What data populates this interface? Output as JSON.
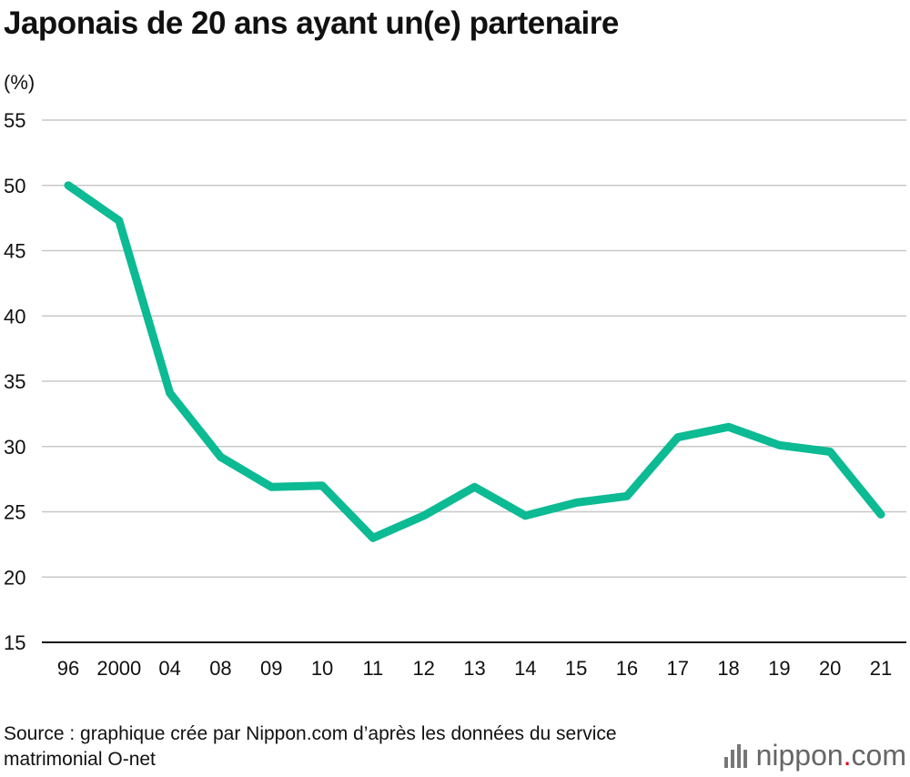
{
  "title": "Japonais de 20 ans ayant un(e) partenaire",
  "unit": "(%)",
  "source": "Source : graphique crée par Nippon.com d’après les données du service matrimonial O-net",
  "brand": {
    "name": "nippon",
    "dot": ".",
    "suffix": "com"
  },
  "colors": {
    "line": "#0cba93",
    "grid": "#c8c8c8",
    "text": "#111111",
    "brand_dot": "#e60012"
  },
  "chart_data": {
    "type": "line",
    "title": "Japonais de 20 ans ayant un(e) partenaire",
    "ylabel": "(%)",
    "xlabel": "",
    "ylim": [
      15,
      55
    ],
    "yticks": [
      15,
      20,
      25,
      30,
      35,
      40,
      45,
      50,
      55
    ],
    "grid": true,
    "categories": [
      "96",
      "2000",
      "04",
      "08",
      "09",
      "10",
      "11",
      "12",
      "13",
      "14",
      "15",
      "16",
      "17",
      "18",
      "19",
      "20",
      "21"
    ],
    "series": [
      {
        "name": "Japonais de 20 ans ayant un(e) partenaire",
        "values": [
          50.0,
          47.3,
          34.1,
          29.2,
          26.9,
          27.0,
          23.0,
          24.7,
          26.9,
          24.7,
          25.7,
          26.2,
          30.7,
          31.5,
          30.1,
          29.6,
          24.8
        ]
      }
    ]
  }
}
